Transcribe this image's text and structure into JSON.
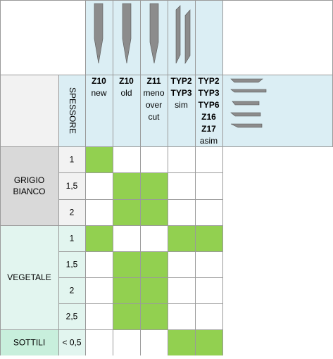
{
  "header": {
    "thickness_label": "SPESSORE",
    "blades": [
      {
        "lines": [
          "Z10",
          "new"
        ]
      },
      {
        "lines": [
          "Z10",
          "old"
        ]
      },
      {
        "lines": [
          "Z11",
          "meno",
          "over",
          "cut"
        ]
      },
      {
        "lines": [
          "TYP2",
          "TYP3",
          "sim"
        ]
      },
      {
        "lines": [
          "TYP2",
          "TYP3",
          "TYP6",
          "Z16",
          "Z17",
          "asim"
        ]
      }
    ]
  },
  "groups": [
    {
      "label": [
        "GRIGIO",
        "BIANCO"
      ],
      "color": "#d9d9d9",
      "cell_color": "#f2f2f2",
      "rows": [
        {
          "thickness": "1",
          "fits": [
            true,
            false,
            false,
            false,
            false
          ]
        },
        {
          "thickness": "1,5",
          "fits": [
            false,
            true,
            true,
            false,
            false
          ]
        },
        {
          "thickness": "2",
          "fits": [
            false,
            true,
            true,
            false,
            false
          ]
        }
      ]
    },
    {
      "label": [
        "VEGETALE"
      ],
      "color": "#e2f5ef",
      "cell_color": "#e2f5ef",
      "rows": [
        {
          "thickness": "1",
          "fits": [
            true,
            false,
            false,
            true,
            true
          ]
        },
        {
          "thickness": "1,5",
          "fits": [
            false,
            true,
            true,
            false,
            false
          ]
        },
        {
          "thickness": "2",
          "fits": [
            false,
            true,
            true,
            false,
            false
          ]
        },
        {
          "thickness": "2,5",
          "fits": [
            false,
            true,
            true,
            false,
            false
          ]
        }
      ]
    },
    {
      "label": [
        "SOTTILI"
      ],
      "color": "#c8efdc",
      "cell_color": "#e2f5ef",
      "rows": [
        {
          "thickness": "< 0,5",
          "fits": [
            false,
            false,
            false,
            true,
            true
          ]
        }
      ]
    }
  ],
  "fit_color": "#92d050"
}
